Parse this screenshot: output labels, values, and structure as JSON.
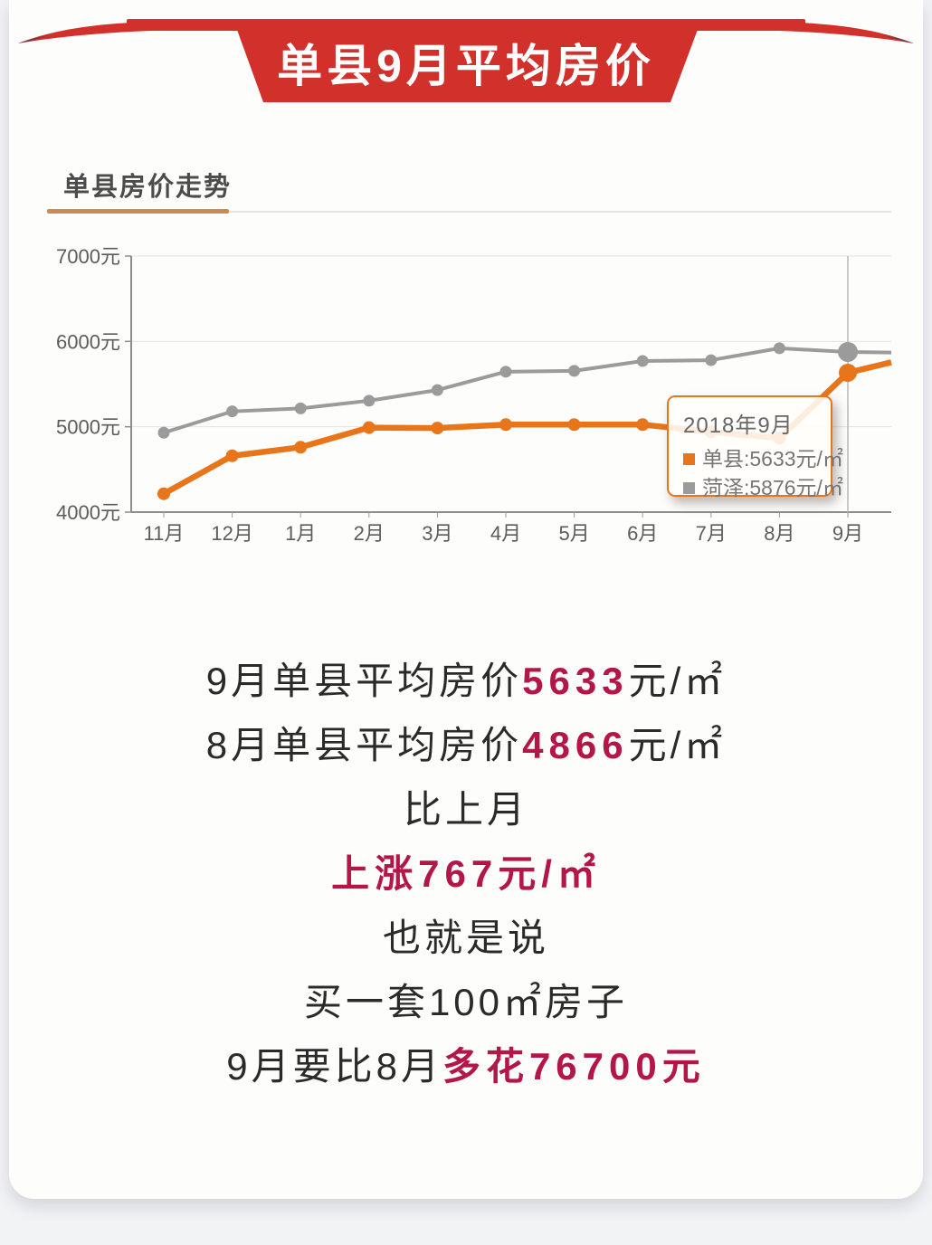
{
  "banner": {
    "title": "单县9月平均房价",
    "bg_color": "#d2312b",
    "text_color": "#ffffff"
  },
  "section": {
    "title": "单县房价走势",
    "underline_color": "#cd8a52"
  },
  "chart_data": {
    "type": "line",
    "title": "单县房价走势",
    "categories": [
      "11月",
      "12月",
      "1月",
      "2月",
      "3月",
      "4月",
      "5月",
      "6月",
      "7月",
      "8月",
      "9月"
    ],
    "series": [
      {
        "name": "菏泽",
        "key": "heze",
        "color": "#9b9b9b",
        "line_width": 4,
        "point_radius": 6.5,
        "highlight_radius": 11,
        "values": [
          4930,
          5180,
          5215,
          5305,
          5430,
          5645,
          5655,
          5770,
          5780,
          5920,
          5876
        ]
      },
      {
        "name": "单县",
        "key": "shanxian",
        "color": "#e8751a",
        "line_width": 6.5,
        "point_radius": 7,
        "highlight_radius": 10,
        "values": [
          4215,
          4660,
          4760,
          4990,
          4985,
          5025,
          5025,
          5025,
          4940,
          4866,
          5633
        ]
      }
    ],
    "edge_extension": {
      "菏泽": 5870,
      "单县": 5755
    },
    "ylim": [
      4000,
      7000
    ],
    "yticks": [
      7000,
      6000,
      5000,
      4000
    ],
    "ylabels": [
      "7000元",
      "6000元",
      "5000元",
      "4000元"
    ],
    "xlabel": "",
    "ylabel": "",
    "grid": true,
    "legend_position": "none",
    "highlight_index": 10,
    "tooltip": {
      "title": "2018年9月",
      "rows": [
        {
          "series": "单县",
          "label": "单县:5633元/㎡"
        },
        {
          "series": "菏泽",
          "label": "菏泽:5876元/㎡"
        }
      ]
    }
  },
  "summary": {
    "accent_color": "#b3174a",
    "lines": [
      {
        "parts": [
          {
            "t": "9月单县平均房价"
          },
          {
            "t": "5633",
            "accent": true
          },
          {
            "t": "元/㎡"
          }
        ]
      },
      {
        "parts": [
          {
            "t": "8月单县平均房价"
          },
          {
            "t": "4866",
            "accent": true
          },
          {
            "t": "元/㎡"
          }
        ]
      },
      {
        "parts": [
          {
            "t": "比上月"
          }
        ]
      },
      {
        "parts": [
          {
            "t": "上涨767元/㎡",
            "accent": true
          }
        ]
      },
      {
        "parts": [
          {
            "t": "也就是说"
          }
        ]
      },
      {
        "parts": [
          {
            "t": "买一套100㎡房子"
          }
        ]
      },
      {
        "parts": [
          {
            "t": "9月要比8月"
          },
          {
            "t": "多花76700元",
            "accent": true
          }
        ]
      }
    ]
  }
}
